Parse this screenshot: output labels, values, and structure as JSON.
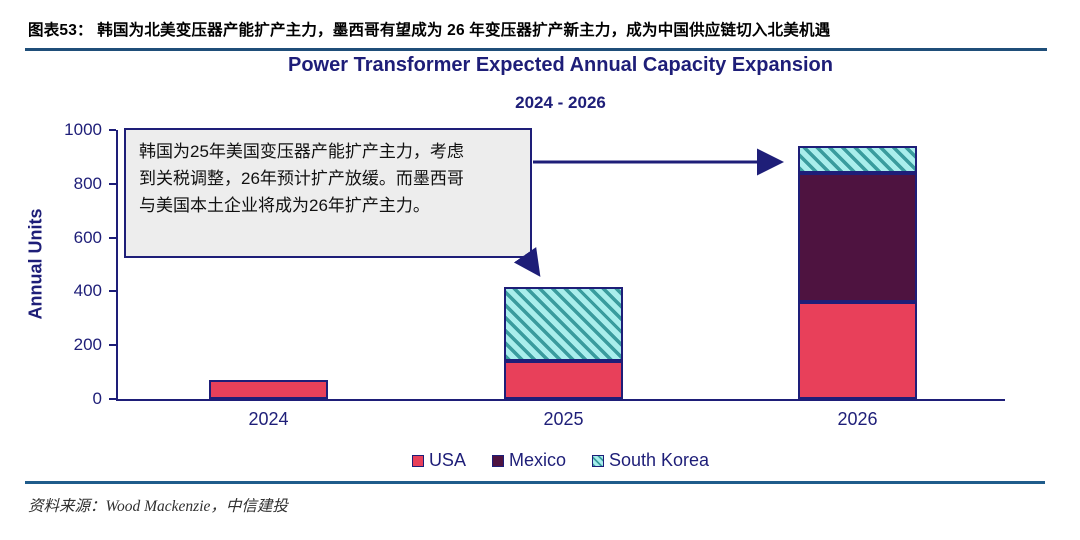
{
  "header": {
    "caption": "图表53：  韩国为北美变压器产能扩产主力，墨西哥有望成为 26 年变压器扩产新主力，成为中国供应链切入北美机遇"
  },
  "chart_data": {
    "type": "bar",
    "stacked": true,
    "title": "Power Transformer Expected Annual Capacity Expansion",
    "subtitle": "2024 - 2026",
    "xlabel": "",
    "ylabel": "Annual Units",
    "ylim": [
      0,
      1000
    ],
    "yticks": [
      0,
      200,
      400,
      600,
      800,
      1000
    ],
    "grid": "off",
    "legend_position": "bottom",
    "categories": [
      "2024",
      "2025",
      "2026"
    ],
    "series": [
      {
        "name": "USA",
        "color": "#e8405a",
        "hatch": false,
        "values": [
          70,
          140,
          360
        ]
      },
      {
        "name": "Mexico",
        "color": "#4e1340",
        "hatch": false,
        "values": [
          0,
          0,
          480
        ]
      },
      {
        "name": "South Korea",
        "color": "#a9eeec",
        "hatch": true,
        "hatch_stripe": "#3a9c9e",
        "values": [
          0,
          275,
          100
        ]
      }
    ],
    "frame_color": "#1e1e78",
    "totals": [
      70,
      415,
      940
    ]
  },
  "annotation": {
    "lines": [
      "韩国为25年美国变压器产能扩产主力，考虑",
      "到关税调整，26年预计扩产放缓。而墨西哥",
      "与美国本土企业将成为26年扩产主力。"
    ]
  },
  "footer": {
    "source": "资料来源：Wood Mackenzie，中信建投"
  }
}
